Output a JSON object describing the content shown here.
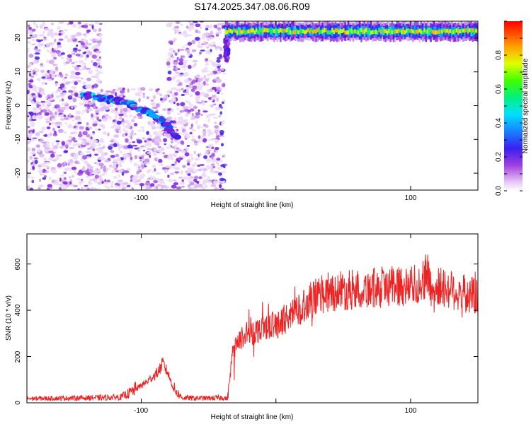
{
  "title": "S174.2025.347.08.06.R09",
  "colors": {
    "snr_line": "#ee2222",
    "axes": "#000000",
    "background": "#ffffff"
  },
  "chart_data": [
    {
      "type": "heatmap",
      "title": "S174.2025.347.08.06.R09",
      "xlabel": "Height of straight line (km)",
      "ylabel": "Frequency (Hz)",
      "xlim": [
        -185,
        150
      ],
      "ylim": [
        -25,
        25
      ],
      "xticks": [
        "-100",
        "100"
      ],
      "yticks": [
        "20",
        "10",
        "0",
        "-10",
        "-20"
      ],
      "colorbar": {
        "label": "Normalized spectral amplitude",
        "range": [
          0,
          1
        ],
        "ticks": [
          "0.0",
          "0.2",
          "0.4",
          "0.6",
          "0.8"
        ],
        "colormap": "rainbow (white-purple-blue-cyan-green-yellow-orange-red)"
      },
      "features": {
        "noise_region_x": [
          -185,
          -38
        ],
        "empty_gap_x": [
          -130,
          -80
        ],
        "empty_gap_y": [
          5,
          25
        ],
        "descending_ridge": [
          [
            -143,
            3
          ],
          [
            -130,
            2.5
          ],
          [
            -120,
            1.5
          ],
          [
            -110,
            0.5
          ],
          [
            -100,
            -1
          ],
          [
            -90,
            -3
          ],
          [
            -80,
            -6
          ],
          [
            -73,
            -10
          ]
        ],
        "vertical_edge_x": -38,
        "vertical_edge_y": [
          13,
          24
        ],
        "horizontal_band_x": [
          -38,
          150
        ],
        "horizontal_band_y": 22
      }
    },
    {
      "type": "line",
      "title": "",
      "xlabel": "Height of straight line (km)",
      "ylabel": "SNR (10 * v/v)",
      "xlim": [
        -185,
        150
      ],
      "ylim": [
        0,
        730
      ],
      "xticks": [
        "-100",
        "100"
      ],
      "yticks": [
        "0",
        "200",
        "400",
        "600"
      ],
      "series": [
        {
          "x": [
            -185,
            -160,
            -130,
            -115,
            -108,
            -100,
            -96,
            -92,
            -88,
            -84,
            -80,
            -76,
            -70,
            -60,
            -50,
            -40,
            -36,
            -34,
            -32,
            -28,
            -24,
            -18,
            -12,
            -6,
            0,
            6,
            12,
            20,
            30,
            40,
            60,
            80,
            90,
            100,
            108,
            112,
            116,
            120,
            130,
            140,
            150
          ],
          "y": [
            18,
            20,
            22,
            25,
            45,
            75,
            90,
            110,
            130,
            170,
            125,
            60,
            22,
            20,
            20,
            22,
            18,
            120,
            230,
            260,
            290,
            300,
            320,
            340,
            330,
            360,
            380,
            420,
            460,
            480,
            490,
            500,
            510,
            500,
            520,
            560,
            480,
            500,
            490,
            470,
            460
          ]
        }
      ]
    }
  ]
}
